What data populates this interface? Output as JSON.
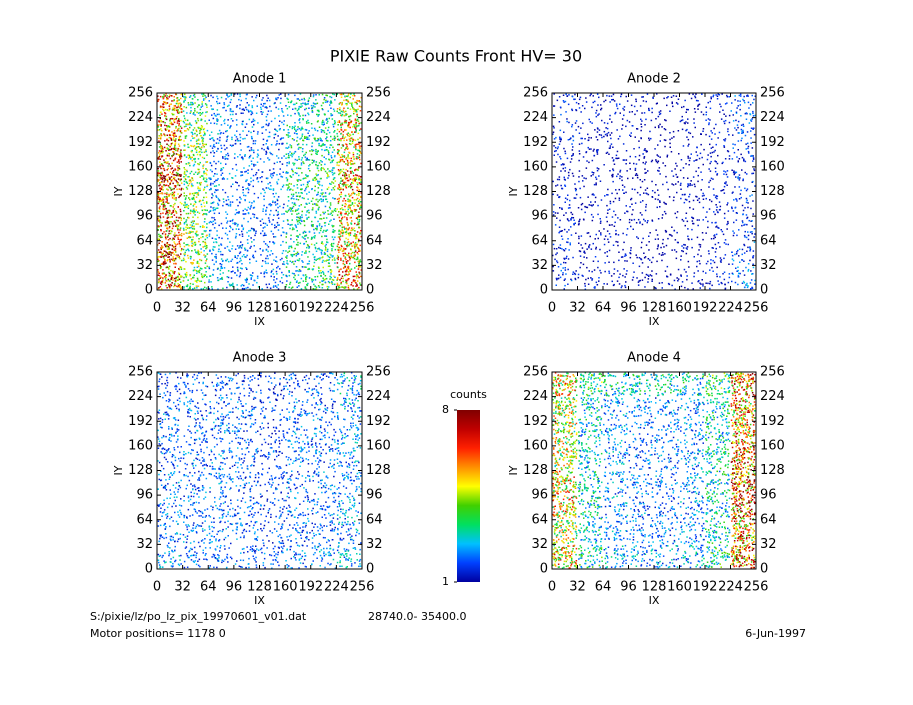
{
  "title": "PIXIE Raw Counts Front HV= 30",
  "chart_data": [
    {
      "type": "heatmap",
      "title": "Anode 1",
      "xlabel": "IX",
      "ylabel": "IY",
      "xlim": [
        0,
        256
      ],
      "ylim": [
        0,
        256
      ],
      "xticks": [
        0,
        32,
        64,
        96,
        128,
        160,
        192,
        224,
        256
      ],
      "yticks": [
        0,
        32,
        64,
        96,
        128,
        160,
        192,
        224,
        256
      ],
      "values": [
        [
          5.5,
          3.5,
          2.2,
          2,
          2,
          2.8,
          3,
          4.5
        ],
        [
          6,
          4,
          2.2,
          2,
          2,
          3,
          3.2,
          5
        ],
        [
          6,
          4,
          2,
          2,
          1.8,
          3,
          3.2,
          5
        ],
        [
          6.5,
          4,
          2.2,
          2,
          2,
          3.2,
          3.5,
          5.5
        ],
        [
          6,
          4,
          2.2,
          2,
          2,
          3,
          3.2,
          5
        ],
        [
          6,
          4,
          2,
          2,
          1.8,
          3,
          3,
          5
        ],
        [
          6.5,
          4,
          2.2,
          2.2,
          2,
          3,
          3.5,
          5.5
        ],
        [
          6,
          4,
          2.5,
          2.2,
          2,
          3,
          3.5,
          5.5
        ]
      ]
    },
    {
      "type": "heatmap",
      "title": "Anode 2",
      "xlabel": "IX",
      "ylabel": "IY",
      "xlim": [
        0,
        256
      ],
      "ylim": [
        0,
        256
      ],
      "xticks": [
        0,
        32,
        64,
        96,
        128,
        160,
        192,
        224,
        256
      ],
      "yticks": [
        0,
        32,
        64,
        96,
        128,
        160,
        192,
        224,
        256
      ],
      "values": [
        [
          1.5,
          1.3,
          1.3,
          1.2,
          1.1,
          1.2,
          1.4,
          2
        ],
        [
          1.5,
          1.3,
          1.2,
          1.2,
          1,
          1.2,
          1.3,
          1.8
        ],
        [
          1.4,
          1.2,
          1.2,
          1.1,
          1,
          1.2,
          1.3,
          1.6
        ],
        [
          1.4,
          1.2,
          1.2,
          1.1,
          1,
          1.2,
          1.3,
          1.6
        ],
        [
          1.4,
          1.2,
          1.2,
          1.1,
          1,
          1.2,
          1.3,
          1.6
        ],
        [
          1.4,
          1.2,
          1.2,
          1.1,
          1,
          1.2,
          1.3,
          1.6
        ],
        [
          1.5,
          1.3,
          1.2,
          1.2,
          1,
          1.2,
          1.3,
          1.8
        ],
        [
          1.6,
          1.4,
          1.3,
          1.2,
          1.1,
          1.3,
          1.4,
          2
        ]
      ]
    },
    {
      "type": "heatmap",
      "title": "Anode 3",
      "xlabel": "IX",
      "ylabel": "IY",
      "xlim": [
        0,
        256
      ],
      "ylim": [
        0,
        256
      ],
      "xticks": [
        0,
        32,
        64,
        96,
        128,
        160,
        192,
        224,
        256
      ],
      "yticks": [
        0,
        32,
        64,
        96,
        128,
        160,
        192,
        224,
        256
      ],
      "values": [
        [
          1.8,
          1.8,
          1.8,
          1.7,
          1.6,
          1.8,
          2,
          2.5
        ],
        [
          2,
          2,
          2,
          1.9,
          1.7,
          2,
          2,
          2.3
        ],
        [
          2,
          2,
          2,
          1.9,
          1.7,
          2,
          2,
          2.2
        ],
        [
          2,
          2,
          2,
          1.9,
          1.7,
          2,
          2,
          2.2
        ],
        [
          2,
          2,
          2,
          1.9,
          1.7,
          2,
          2,
          2.2
        ],
        [
          2,
          2,
          2,
          1.9,
          1.7,
          2,
          2,
          2.2
        ],
        [
          2,
          2,
          2,
          1.9,
          1.7,
          2,
          2,
          2.3
        ],
        [
          2.2,
          2,
          2,
          1.9,
          1.8,
          2,
          2.2,
          2.5
        ]
      ]
    },
    {
      "type": "heatmap",
      "title": "Anode 4",
      "xlabel": "IX",
      "ylabel": "IY",
      "xlim": [
        0,
        256
      ],
      "ylim": [
        0,
        256
      ],
      "xticks": [
        0,
        32,
        64,
        96,
        128,
        160,
        192,
        224,
        256
      ],
      "yticks": [
        0,
        32,
        64,
        96,
        128,
        160,
        192,
        224,
        256
      ],
      "values": [
        [
          5,
          3.5,
          3,
          3,
          3,
          3,
          3.5,
          6
        ],
        [
          4.5,
          2.8,
          2.2,
          2,
          2,
          2.2,
          3,
          5.5
        ],
        [
          4.5,
          2.8,
          2.2,
          2,
          2,
          2.2,
          3,
          5.5
        ],
        [
          4.5,
          2.8,
          2.2,
          2,
          2,
          2.2,
          3,
          6
        ],
        [
          5,
          3,
          2.2,
          2,
          2,
          2.2,
          3,
          6
        ],
        [
          5,
          3,
          2.2,
          2,
          2,
          2.2,
          3,
          6
        ],
        [
          4.5,
          2.8,
          2.2,
          2,
          2,
          2.2,
          3,
          5.5
        ],
        [
          5,
          3.2,
          2.5,
          2.3,
          2.3,
          2.5,
          3.2,
          6
        ]
      ]
    },
    {
      "type": "colorbar",
      "title": "counts",
      "ylim": [
        1,
        8
      ],
      "yticks": [
        1,
        8
      ],
      "colors": [
        "#0000a0",
        "#0040ff",
        "#00c0ff",
        "#00e060",
        "#40d000",
        "#ffff00",
        "#ff9000",
        "#ff2000",
        "#c00000",
        "#800000"
      ]
    }
  ],
  "footer": {
    "file": "S:/pixie/lz/po_lz_pix_19970601_v01.dat",
    "range": "28740.0- 35400.0",
    "motor": "Motor positions= 1178 0",
    "date": "6-Jun-1997"
  }
}
